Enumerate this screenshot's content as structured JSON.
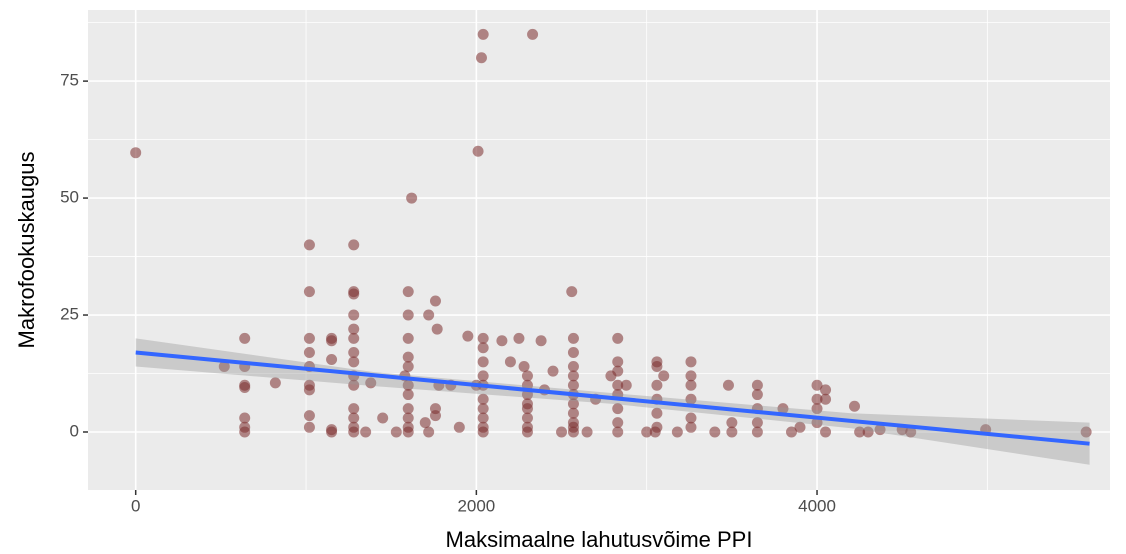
{
  "chart_data": {
    "type": "scatter",
    "x_label": "Maksimaalne lahutusvõime PPI",
    "y_label": "Makrofookuskaugus",
    "xlim": [
      -280,
      5720
    ],
    "ylim": [
      -12.4,
      90.2
    ],
    "xticks": [
      0,
      2000,
      4000
    ],
    "yticks": [
      0,
      25,
      50,
      75
    ],
    "xminorticks": [
      1000,
      3000,
      5000
    ],
    "yminorticks": [
      12.5,
      37.5,
      62.5,
      87.5
    ],
    "grid": true,
    "point_color": "#7b2e2e",
    "x": [
      0,
      520,
      640,
      640,
      640,
      640,
      640,
      640,
      640,
      820,
      1020,
      1020,
      1020,
      1020,
      1020,
      1020,
      1020,
      1020,
      1020,
      1150,
      1150,
      1150,
      1150,
      1150,
      1280,
      1280,
      1280,
      1280,
      1280,
      1280,
      1280,
      1280,
      1280,
      1280,
      1280,
      1280,
      1280,
      1280,
      1350,
      1380,
      1450,
      1530,
      1580,
      1620,
      1600,
      1600,
      1600,
      1600,
      1600,
      1600,
      1600,
      1600,
      1600,
      1600,
      1600,
      1700,
      1720,
      1720,
      1760,
      1770,
      1760,
      1760,
      1780,
      1850,
      1900,
      1950,
      2000,
      2040,
      2030,
      2010,
      2040,
      2040,
      2040,
      2040,
      2040,
      2040,
      2040,
      2040,
      2040,
      2040,
      2150,
      2200,
      2250,
      2280,
      2300,
      2300,
      2300,
      2300,
      2300,
      2300,
      2300,
      2300,
      2330,
      2380,
      2400,
      2450,
      2500,
      2560,
      2570,
      2570,
      2570,
      2570,
      2570,
      2570,
      2570,
      2570,
      2570,
      2570,
      2570,
      2650,
      2700,
      2790,
      2830,
      2830,
      2830,
      2830,
      2830,
      2830,
      2830,
      2830,
      2880,
      3000,
      3050,
      3060,
      3060,
      3060,
      3060,
      3060,
      3060,
      3100,
      3180,
      3260,
      3260,
      3260,
      3260,
      3260,
      3260,
      3400,
      3480,
      3500,
      3500,
      3650,
      3650,
      3650,
      3650,
      3650,
      3800,
      3850,
      3900,
      4000,
      4000,
      4000,
      4000,
      4050,
      4050,
      4050,
      4220,
      4250,
      4300,
      4370,
      4500,
      4550,
      4990,
      5580
    ],
    "values": [
      59.7,
      14,
      20,
      14,
      10,
      9.5,
      3,
      1,
      0,
      10.5,
      40,
      30,
      20,
      17,
      14,
      10,
      9,
      3.5,
      1,
      20,
      19.5,
      15.5,
      0.5,
      0,
      40,
      30,
      29.5,
      25,
      22,
      20,
      17,
      15,
      12,
      10,
      5,
      3,
      1,
      0,
      0,
      10.5,
      3,
      0,
      12,
      50,
      30,
      25,
      20,
      16,
      14,
      10,
      8,
      5,
      3,
      1,
      0,
      2,
      0,
      25,
      28,
      22,
      5,
      3.5,
      10,
      10,
      1,
      20.5,
      10,
      85,
      80,
      60,
      20,
      18,
      15,
      12,
      10,
      7,
      5,
      3,
      1,
      0,
      19.5,
      15,
      20,
      14,
      12,
      10,
      8,
      6,
      5,
      3,
      1,
      0,
      85,
      19.5,
      9,
      13,
      0,
      30,
      20,
      17,
      14,
      12,
      10,
      8,
      6,
      4,
      2,
      1,
      0,
      0,
      7,
      12,
      20,
      15,
      13,
      10,
      8,
      5,
      2,
      0,
      10,
      0,
      0,
      15,
      14,
      10,
      7,
      4,
      1,
      12,
      0,
      15,
      12,
      10,
      7,
      3,
      1,
      0,
      10,
      2,
      0,
      10,
      8,
      5,
      2,
      0,
      5,
      0,
      1,
      10,
      7,
      5,
      2,
      9,
      7,
      0,
      5.5,
      0,
      0,
      0.5,
      0.5,
      0,
      0.5,
      0
    ],
    "fit": {
      "color": "#3366ff",
      "x": [
        0,
        5600
      ],
      "y": [
        17,
        -2.5
      ]
    },
    "band": {
      "color": "#999999",
      "x": [
        0,
        1400,
        2800,
        4200,
        5600
      ],
      "lower": [
        14,
        9.8,
        6,
        0.8,
        -7
      ],
      "upper": [
        20,
        12.8,
        8.3,
        4,
        2
      ]
    }
  }
}
